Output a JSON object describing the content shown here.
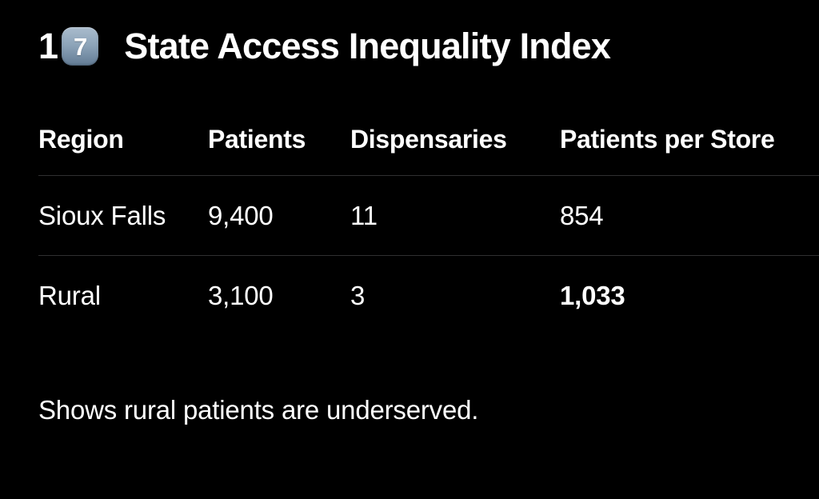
{
  "page": {
    "background_color": "#000000",
    "text_color": "#ffffff",
    "divider_color": "#2f2f31"
  },
  "heading": {
    "prefix": "1",
    "keycap_digit": "7",
    "keycap_colors": {
      "top": "#aabccd",
      "bottom": "#627b94"
    },
    "title": "State Access Inequality Index"
  },
  "table": {
    "columns": [
      "Region",
      "Patients",
      "Dispensaries",
      "Patients per Store"
    ],
    "rows": [
      {
        "cells": [
          "Sioux Falls",
          "9,400",
          "11",
          "854"
        ],
        "emphasis_last": false
      },
      {
        "cells": [
          "Rural",
          "3,100",
          "3",
          "1,033"
        ],
        "emphasis_last": true
      }
    ]
  },
  "footer": {
    "text": "Shows rural patients are underserved."
  }
}
